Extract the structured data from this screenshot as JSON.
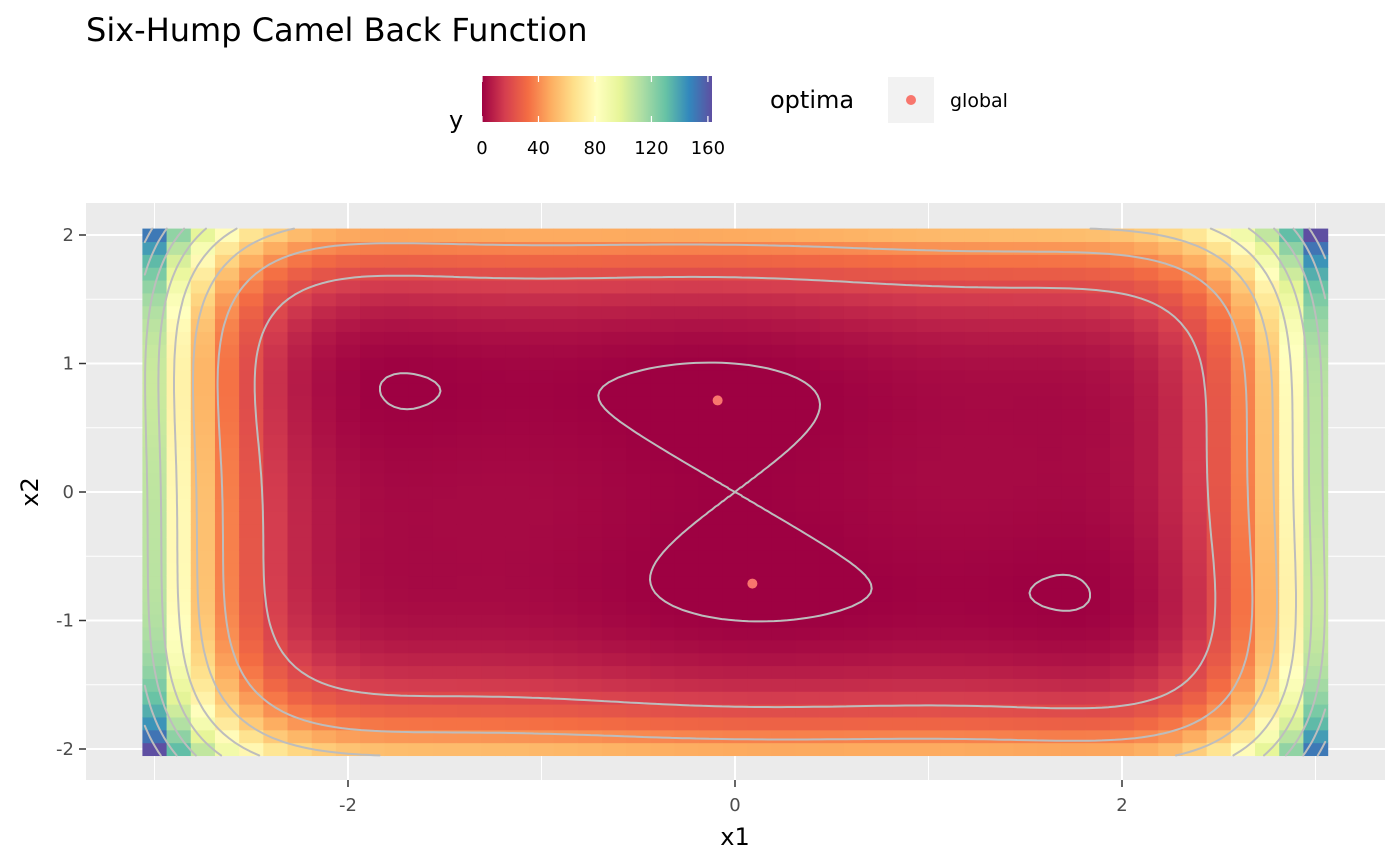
{
  "chart_data": {
    "type": "heatmap",
    "title": "Six-Hump Camel Back Function",
    "xlabel": "x1",
    "ylabel": "x2",
    "xlim": [
      -3,
      3
    ],
    "ylim": [
      -2,
      2
    ],
    "x_ticks": [
      -2,
      0,
      2
    ],
    "y_ticks": [
      2,
      1,
      0,
      -1,
      -2
    ],
    "x_tick_labels": [
      "-2",
      "0",
      "2"
    ],
    "y_tick_labels": [
      "2",
      "1",
      "0",
      "-1",
      "-2"
    ],
    "grid": true,
    "function": "y = (4 - 2.1*x1^2 + x1^4/3)*x1^2 + x1*x2 + (-4 + 4*x2^2)*x2^2",
    "fill_scale": {
      "name": "y",
      "range": [
        0,
        162.9
      ],
      "breaks": [
        0,
        40,
        80,
        120,
        160
      ],
      "break_labels": [
        "0",
        "40",
        "80",
        "120",
        "160"
      ],
      "palette": "Spectral (reversed)",
      "colors": [
        "#9E0142",
        "#D53E4F",
        "#F46D43",
        "#FDAE61",
        "#FEE08B",
        "#FFFFBF",
        "#E6F598",
        "#ABDDA4",
        "#66C2A5",
        "#3288BD",
        "#5E4FA2"
      ]
    },
    "contour_color": "#bdbdbd",
    "series": [
      {
        "name": "global",
        "type": "point",
        "color": "#F8766D",
        "x": [
          -0.0898,
          0.0898
        ],
        "y": [
          0.7126,
          -0.7126
        ]
      }
    ],
    "legend": {
      "position": "top",
      "fill_title": "y",
      "shape_title": "optima",
      "shape_items": [
        "global"
      ]
    }
  }
}
